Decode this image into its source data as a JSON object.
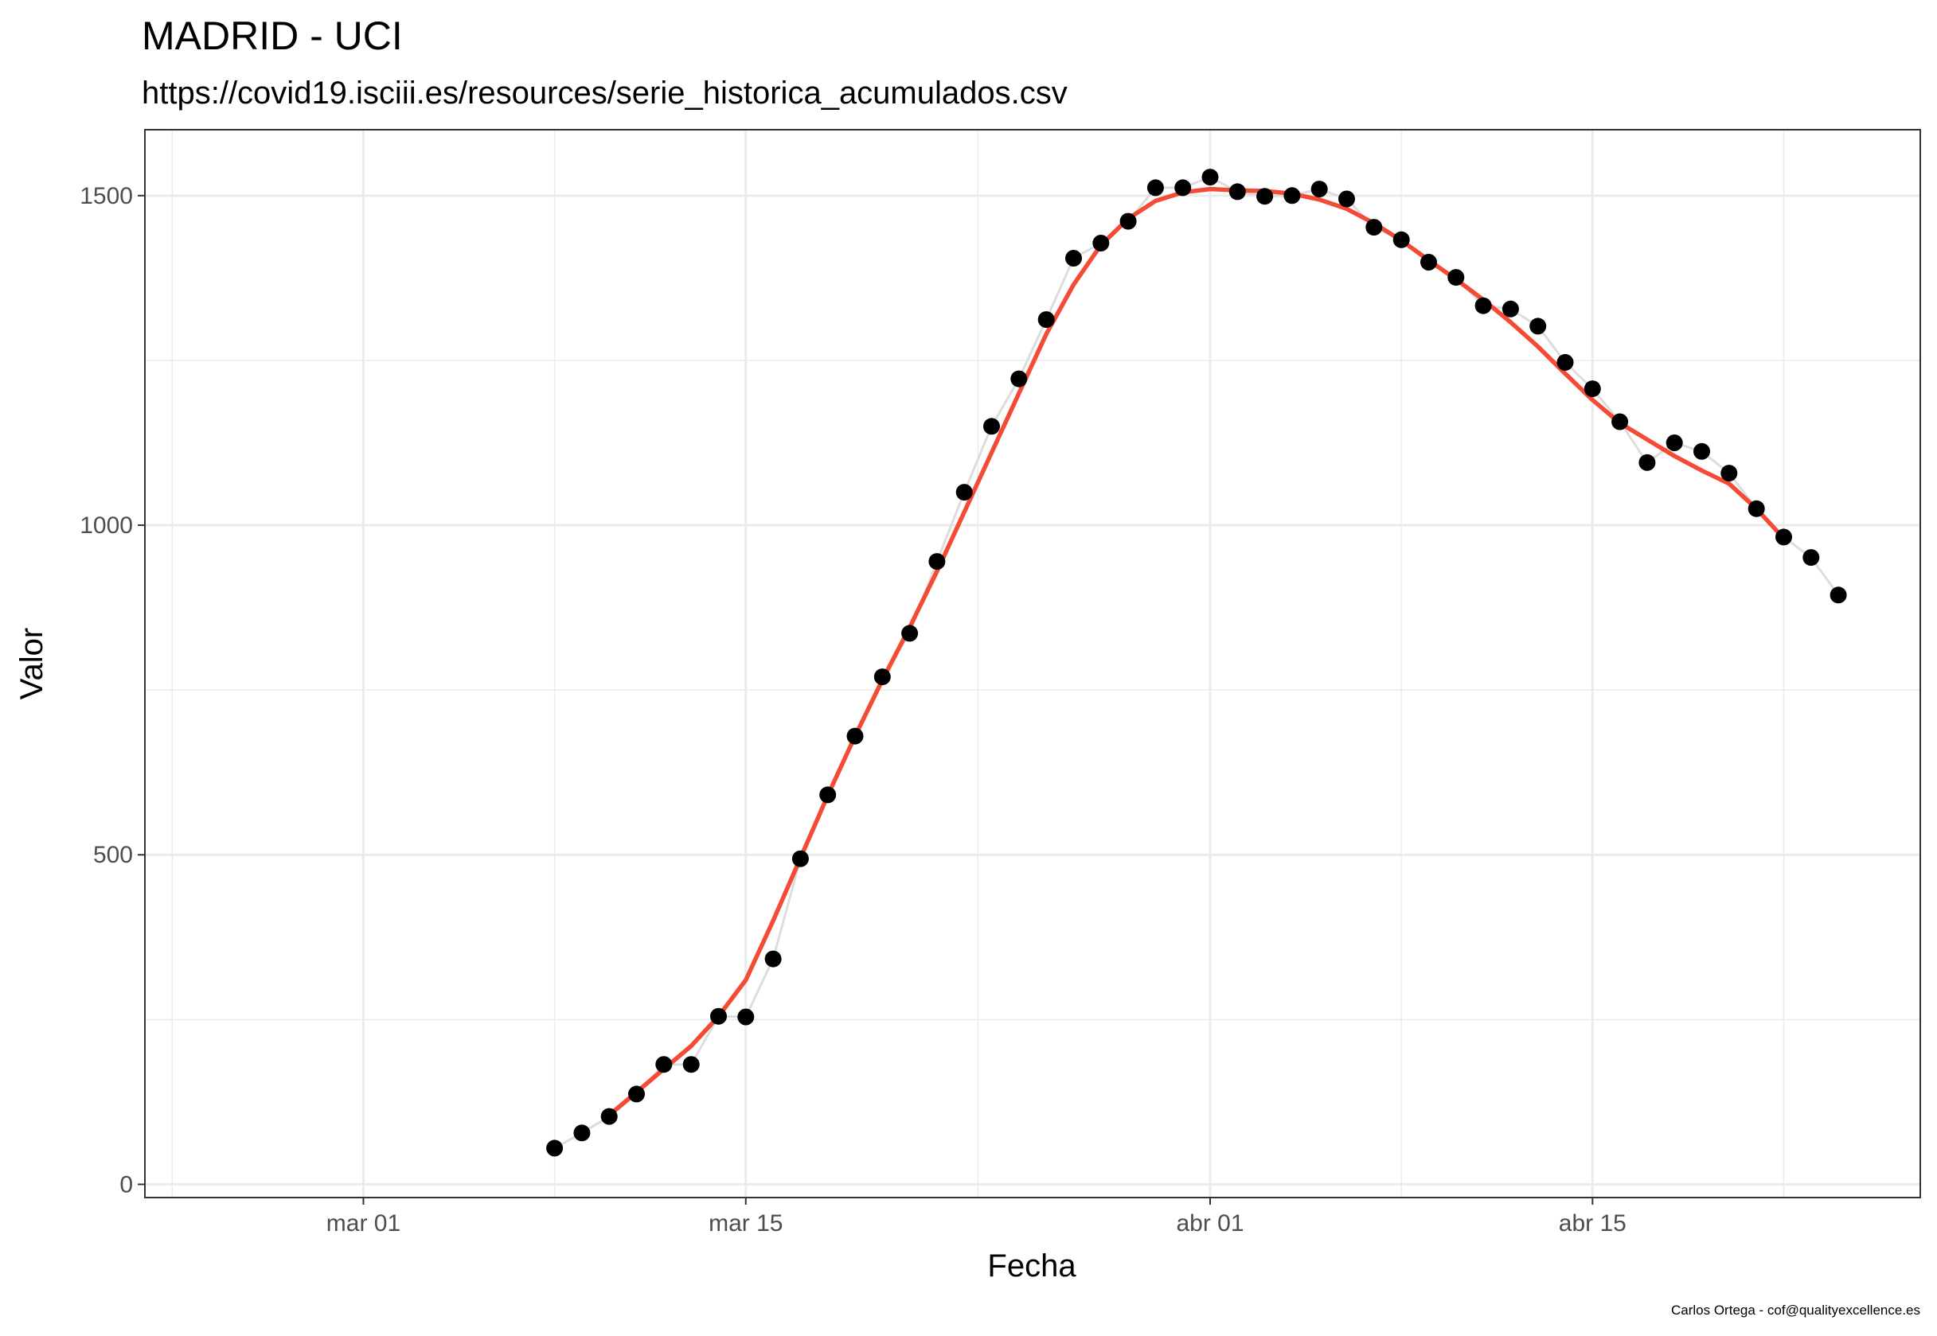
{
  "chart_data": {
    "type": "scatter",
    "title": "MADRID - UCI",
    "subtitle": "https://covid19.isciii.es/resources/serie_historica_acumulados.csv",
    "xlabel": "Fecha",
    "ylabel": "Valor",
    "caption": "Carlos Ortega - cof@qualityexcellence.es",
    "xlim": [
      "2020-02-22",
      "2020-04-27"
    ],
    "ylim": [
      -20,
      1600
    ],
    "x_ticks": [
      {
        "date": "2020-03-01",
        "label": "mar 01"
      },
      {
        "date": "2020-03-15",
        "label": "mar 15"
      },
      {
        "date": "2020-04-01",
        "label": "abr 01"
      },
      {
        "date": "2020-04-15",
        "label": "abr 15"
      }
    ],
    "y_ticks": [
      0,
      500,
      1000,
      1500
    ],
    "grid": true,
    "colors": {
      "points": "#000000",
      "smooth": "#f44b36",
      "grid": "#ebebeb",
      "connect": "#dddddd"
    },
    "series": [
      {
        "x": [
          "2020-03-08",
          "2020-03-09",
          "2020-03-10",
          "2020-03-11",
          "2020-03-12",
          "2020-03-13",
          "2020-03-14",
          "2020-03-15",
          "2020-03-16",
          "2020-03-17",
          "2020-03-18",
          "2020-03-19",
          "2020-03-20",
          "2020-03-21",
          "2020-03-22",
          "2020-03-23",
          "2020-03-24",
          "2020-03-25",
          "2020-03-26",
          "2020-03-27",
          "2020-03-28",
          "2020-03-29",
          "2020-03-30",
          "2020-03-31",
          "2020-04-01",
          "2020-04-02",
          "2020-04-03",
          "2020-04-04",
          "2020-04-05",
          "2020-04-06",
          "2020-04-07",
          "2020-04-08",
          "2020-04-09",
          "2020-04-10",
          "2020-04-11",
          "2020-04-12",
          "2020-04-13",
          "2020-04-14",
          "2020-04-15",
          "2020-04-16",
          "2020-04-17",
          "2020-04-18",
          "2020-04-19",
          "2020-04-20",
          "2020-04-21",
          "2020-04-22",
          "2020-04-23",
          "2020-04-24"
        ],
        "y": [
          55,
          78,
          103,
          137,
          182,
          182,
          255,
          254,
          342,
          494,
          591,
          680,
          770,
          836,
          945,
          1050,
          1150,
          1222,
          1312,
          1405,
          1428,
          1461,
          1512,
          1512,
          1528,
          1506,
          1499,
          1500,
          1510,
          1495,
          1452,
          1433,
          1399,
          1376,
          1333,
          1328,
          1302,
          1247,
          1207,
          1157,
          1095,
          1125,
          1112,
          1079,
          1025,
          982,
          951,
          894
        ]
      },
      {
        "x": [
          "2020-03-10",
          "2020-03-11",
          "2020-03-12",
          "2020-03-13",
          "2020-03-14",
          "2020-03-15",
          "2020-03-16",
          "2020-03-17",
          "2020-03-18",
          "2020-03-19",
          "2020-03-20",
          "2020-03-21",
          "2020-03-22",
          "2020-03-23",
          "2020-03-24",
          "2020-03-25",
          "2020-03-26",
          "2020-03-27",
          "2020-03-28",
          "2020-03-29",
          "2020-03-30",
          "2020-03-31",
          "2020-04-01",
          "2020-04-02",
          "2020-04-03",
          "2020-04-04",
          "2020-04-05",
          "2020-04-06",
          "2020-04-07",
          "2020-04-08",
          "2020-04-09",
          "2020-04-10",
          "2020-04-11",
          "2020-04-12",
          "2020-04-13",
          "2020-04-14",
          "2020-04-15",
          "2020-04-16",
          "2020-04-17",
          "2020-04-18",
          "2020-04-19",
          "2020-04-20",
          "2020-04-21",
          "2020-04-22"
        ],
        "y": [
          105,
          140,
          175,
          210,
          255,
          310,
          400,
          495,
          590,
          680,
          765,
          845,
          930,
          1020,
          1110,
          1200,
          1290,
          1365,
          1425,
          1465,
          1492,
          1505,
          1510,
          1508,
          1507,
          1503,
          1494,
          1480,
          1458,
          1432,
          1402,
          1373,
          1342,
          1308,
          1271,
          1230,
          1190,
          1155,
          1130,
          1105,
          1083,
          1063,
          1025,
          980
        ]
      }
    ]
  }
}
